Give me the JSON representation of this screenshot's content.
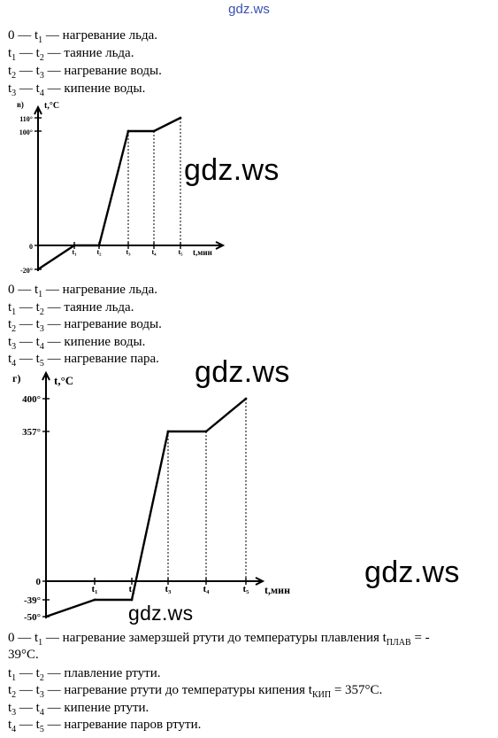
{
  "header": {
    "site_link": "gdz.ws"
  },
  "section_v": {
    "lines": [
      {
        "a": "0",
        "as": "",
        "b": "t",
        "bs": "1",
        "text": " — нагревание льда."
      },
      {
        "a": "t",
        "as": "1",
        "b": "t",
        "bs": "2",
        "text": " — таяние льда."
      },
      {
        "a": "t",
        "as": "2",
        "b": "t",
        "bs": "3",
        "text": " — нагревание воды."
      },
      {
        "a": "t",
        "as": "3",
        "b": "t",
        "bs": "4",
        "text": " — кипение воды."
      }
    ]
  },
  "section_g_lines": {
    "lines": [
      {
        "a": "0",
        "as": "",
        "b": "t",
        "bs": "1",
        "text": " — нагревание льда."
      },
      {
        "a": "t",
        "as": "1",
        "b": "t",
        "bs": "2",
        "text": " — таяние льда."
      },
      {
        "a": "t",
        "as": "2",
        "b": "t",
        "bs": "3",
        "text": " — нагревание воды."
      },
      {
        "a": "t",
        "as": "3",
        "b": "t",
        "bs": "4",
        "text": " — кипение воды."
      },
      {
        "a": "t",
        "as": "4",
        "b": "t",
        "bs": "5",
        "text": " — нагревание пара."
      }
    ]
  },
  "section_mercury": {
    "line1_prefix": " — нагревание замерзшей ртути до температуры плавления t",
    "line1_sub": "ПЛАВ",
    "line1_suffix": " = -",
    "line1_cont": "39°C.",
    "line2": " — плавление ртути.",
    "line3_prefix": " — нагревание ртути до температуры кипения t",
    "line3_sub": "КИП",
    "line3_suffix": " = 357°C.",
    "line4": " — кипение ртути.",
    "line5": " — нагревание паров ртути."
  },
  "watermarks": [
    "gdz.ws",
    "gdz.ws",
    "gdz.ws",
    "gdz.ws"
  ],
  "chart_data": [
    {
      "type": "line",
      "panel_label": "в)",
      "ylabel": "t,°C",
      "xlabel": "t,мин",
      "y_tick_labels": [
        "110°",
        "100°",
        "0",
        "-20°"
      ],
      "x_tick_labels": [
        "t₁",
        "t₂",
        "t₃",
        "t₄",
        "t₅"
      ],
      "points": [
        {
          "x": "0",
          "y": -20
        },
        {
          "x": "t₁",
          "y": 0
        },
        {
          "x": "t₂",
          "y": 0
        },
        {
          "x": "t₃",
          "y": 100
        },
        {
          "x": "t₄",
          "y": 100
        },
        {
          "x": "t₅",
          "y": 110
        }
      ]
    },
    {
      "type": "line",
      "panel_label": "г)",
      "ylabel": "t,°C",
      "xlabel": "t,мин",
      "y_tick_labels": [
        "400°",
        "357°",
        "0",
        "-39°",
        "-50°"
      ],
      "x_tick_labels": [
        "t₁",
        "t₂",
        "t₃",
        "t₄",
        "t₅"
      ],
      "points": [
        {
          "x": "0",
          "y": -50
        },
        {
          "x": "t₁",
          "y": -39
        },
        {
          "x": "t₂",
          "y": -39
        },
        {
          "x": "t₃",
          "y": 357
        },
        {
          "x": "t₄",
          "y": 357
        },
        {
          "x": "t₅",
          "y": 400
        }
      ]
    }
  ]
}
